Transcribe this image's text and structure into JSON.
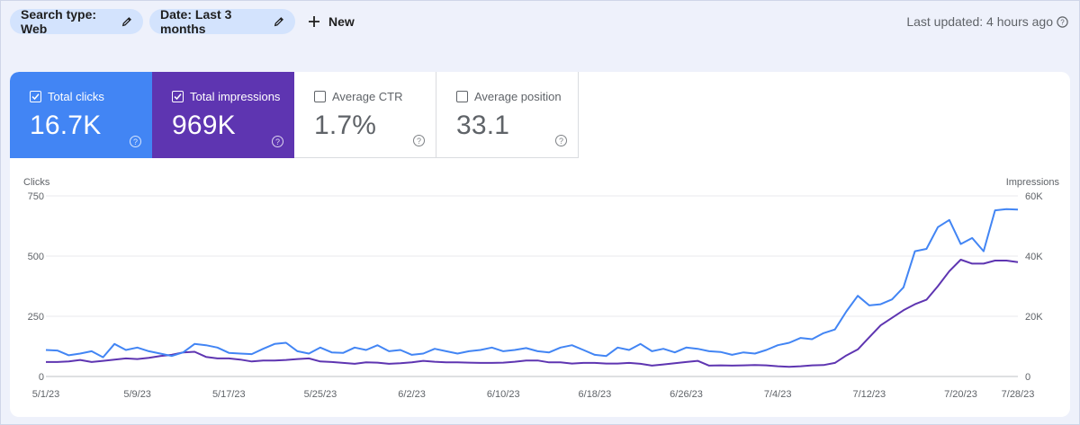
{
  "toolbar": {
    "search_type": "Search type: Web",
    "date_range": "Date: Last 3 months",
    "new_label": "New",
    "last_updated": "Last updated: 4 hours ago"
  },
  "metrics": [
    {
      "label": "Total clicks",
      "value": "16.7K",
      "checked": true,
      "color": "#4285f4"
    },
    {
      "label": "Total impressions",
      "value": "969K",
      "checked": true,
      "color": "#5e35b1"
    },
    {
      "label": "Average CTR",
      "value": "1.7%",
      "checked": false
    },
    {
      "label": "Average position",
      "value": "33.1",
      "checked": false
    }
  ],
  "chart_data": {
    "type": "line",
    "left_axis_title": "Clicks",
    "right_axis_title": "Impressions",
    "left_ylim": [
      0,
      750
    ],
    "right_ylim": [
      0,
      60000
    ],
    "left_ticks": [
      "750",
      "500",
      "250",
      "0"
    ],
    "right_ticks": [
      "60K",
      "40K",
      "20K",
      "0"
    ],
    "x_tick_labels": [
      "5/1/23",
      "5/9/23",
      "5/17/23",
      "5/25/23",
      "6/2/23",
      "6/10/23",
      "6/18/23",
      "6/26/23",
      "7/4/23",
      "7/12/23",
      "7/20/23",
      "7/28/23"
    ],
    "grid": true,
    "series": [
      {
        "name": "Total clicks",
        "axis": "left",
        "color": "#4285f4",
        "values": [
          110,
          108,
          88,
          95,
          105,
          80,
          135,
          110,
          120,
          105,
          95,
          85,
          100,
          135,
          130,
          120,
          98,
          95,
          93,
          115,
          135,
          140,
          105,
          95,
          120,
          100,
          98,
          120,
          110,
          130,
          105,
          110,
          90,
          95,
          115,
          105,
          95,
          105,
          110,
          120,
          105,
          110,
          118,
          105,
          100,
          120,
          130,
          110,
          90,
          85,
          120,
          110,
          135,
          105,
          115,
          100,
          120,
          115,
          105,
          102,
          90,
          100,
          95,
          110,
          130,
          140,
          160,
          155,
          180,
          195,
          270,
          335,
          295,
          300,
          320,
          370,
          520,
          530,
          620,
          650,
          550,
          575,
          520,
          690,
          695,
          693
        ]
      },
      {
        "name": "Total impressions",
        "axis": "right",
        "color": "#5e35b1",
        "values": [
          4800,
          4800,
          5000,
          5500,
          4800,
          5200,
          5600,
          6000,
          5800,
          6200,
          6800,
          7200,
          8000,
          8200,
          6500,
          6000,
          6000,
          5600,
          5000,
          5300,
          5300,
          5500,
          5800,
          6000,
          5000,
          4800,
          4500,
          4200,
          4700,
          4600,
          4200,
          4400,
          4700,
          5200,
          4900,
          4700,
          4700,
          4600,
          4500,
          4500,
          4600,
          4900,
          5300,
          5300,
          4700,
          4700,
          4300,
          4500,
          4500,
          4300,
          4300,
          4500,
          4200,
          3600,
          4000,
          4400,
          4800,
          5200,
          3600,
          3700,
          3600,
          3700,
          3800,
          3700,
          3400,
          3200,
          3400,
          3700,
          3800,
          4500,
          7000,
          9000,
          13000,
          17000,
          19500,
          22000,
          24000,
          25500,
          30000,
          35000,
          38800,
          37500,
          37500,
          38500,
          38500,
          38000
        ]
      }
    ]
  }
}
